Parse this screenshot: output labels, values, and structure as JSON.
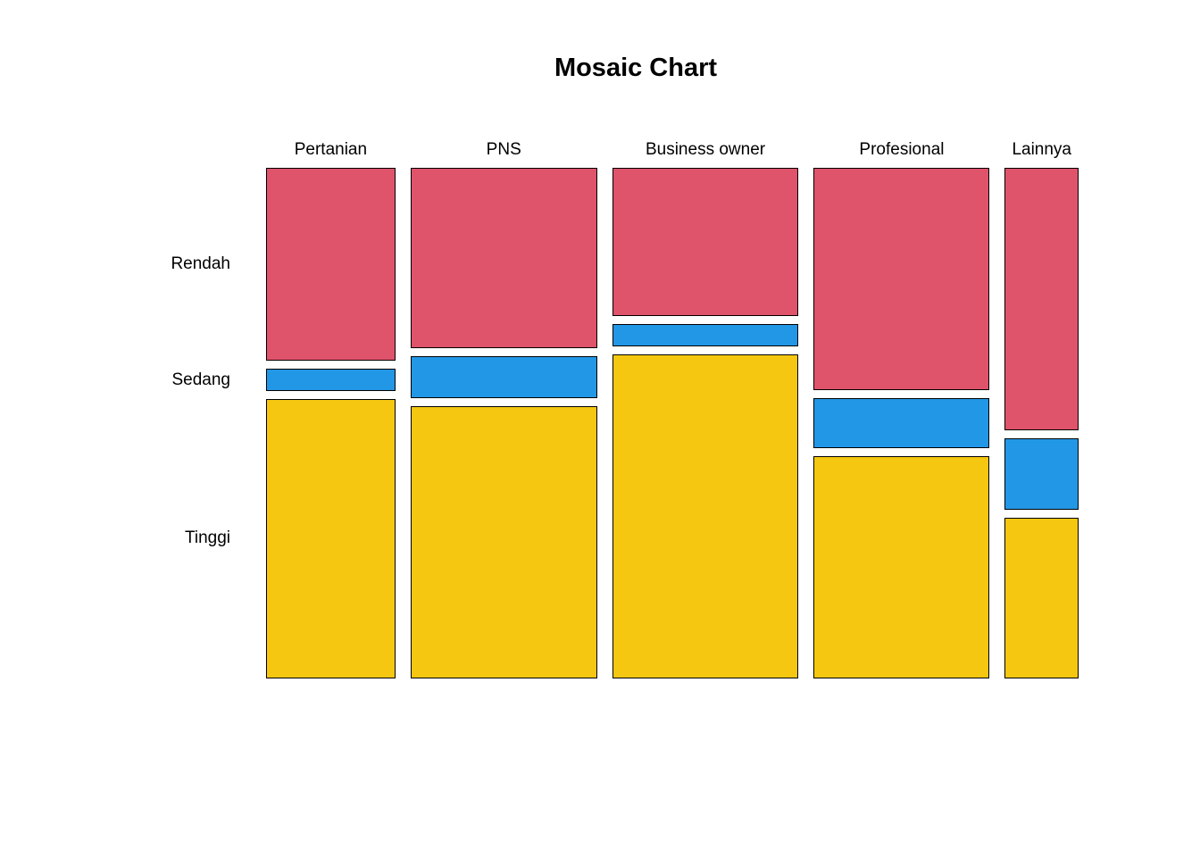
{
  "chart_data": {
    "type": "mosaic",
    "title": "Mosaic Chart",
    "x_dimension_values": [
      "Pertanian",
      "PNS",
      "Business owner",
      "Profesional",
      "Lainnya"
    ],
    "y_dimension_values": [
      "Rendah",
      "Sedang",
      "Tinggi"
    ],
    "columns": [
      {
        "label": "Pertanian",
        "width_prop": 0.172,
        "segments": [
          0.39,
          0.045,
          0.565
        ]
      },
      {
        "label": "PNS",
        "width_prop": 0.248,
        "segments": [
          0.364,
          0.085,
          0.551
        ]
      },
      {
        "label": "Business owner",
        "width_prop": 0.248,
        "segments": [
          0.3,
          0.045,
          0.655
        ]
      },
      {
        "label": "Profesional",
        "width_prop": 0.234,
        "segments": [
          0.45,
          0.1,
          0.45
        ]
      },
      {
        "label": "Lainnya",
        "width_prop": 0.098,
        "segments": [
          0.53,
          0.145,
          0.325
        ]
      }
    ],
    "rows": [
      {
        "label": "Rendah",
        "color": "#DF536B"
      },
      {
        "label": "Sedang",
        "color": "#2297E6"
      },
      {
        "label": "Tinggi",
        "color": "#F5C710"
      }
    ],
    "legend_position": "none",
    "grid": false
  }
}
